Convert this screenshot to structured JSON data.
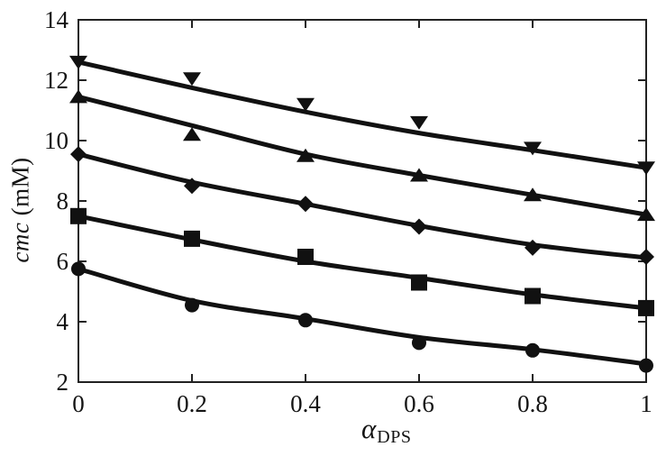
{
  "chart_data": {
    "type": "line",
    "title": "",
    "xlabel_main": "α",
    "xlabel_sub": "DPS",
    "ylabel_italic": "cmc",
    "ylabel_rest": " (mM)",
    "xlim": [
      0,
      1
    ],
    "ylim": [
      2,
      14
    ],
    "grid": false,
    "legend": "none",
    "ink_color": "#111111",
    "frame_color": "#222222",
    "x": [
      0,
      0.2,
      0.4,
      0.6,
      0.8,
      1
    ],
    "series": [
      {
        "name": "series-triangle-down",
        "marker": "triangle-down",
        "values": [
          12.6,
          12.05,
          11.2,
          10.6,
          9.75,
          9.1
        ],
        "curve": [
          12.6,
          11.75,
          10.95,
          10.25,
          9.68,
          9.1
        ]
      },
      {
        "name": "series-triangle-up",
        "marker": "triangle-up",
        "values": [
          11.45,
          10.2,
          9.5,
          8.85,
          8.2,
          7.55
        ],
        "curve": [
          11.45,
          10.5,
          9.55,
          8.85,
          8.2,
          7.55
        ]
      },
      {
        "name": "series-diamond",
        "marker": "diamond",
        "values": [
          9.55,
          8.5,
          7.9,
          7.15,
          6.45,
          6.15
        ],
        "curve": [
          9.55,
          8.62,
          7.9,
          7.18,
          6.55,
          6.12
        ]
      },
      {
        "name": "series-square",
        "marker": "square",
        "values": [
          7.5,
          6.75,
          6.15,
          5.3,
          4.85,
          4.45
        ],
        "curve": [
          7.5,
          6.72,
          6.0,
          5.45,
          4.9,
          4.45
        ]
      },
      {
        "name": "series-circle",
        "marker": "circle",
        "values": [
          5.75,
          4.55,
          4.05,
          3.3,
          3.05,
          2.55
        ],
        "curve": [
          5.75,
          4.7,
          4.1,
          3.48,
          3.08,
          2.6
        ]
      }
    ],
    "x_tick_labels": [
      "0",
      "0.2",
      "0.4",
      "0.6",
      "0.8",
      "1"
    ],
    "x_tick_values": [
      0,
      0.2,
      0.4,
      0.6,
      0.8,
      1
    ],
    "x_tick_lines": [
      0.2,
      0.4,
      0.6,
      0.8
    ],
    "y_tick_labels": [
      "2",
      "4",
      "6",
      "8",
      "10",
      "12",
      "14"
    ],
    "y_tick_values": [
      2,
      4,
      6,
      8,
      10,
      12,
      14
    ],
    "y_tick_lines": [
      4,
      6,
      8,
      10,
      12
    ]
  }
}
